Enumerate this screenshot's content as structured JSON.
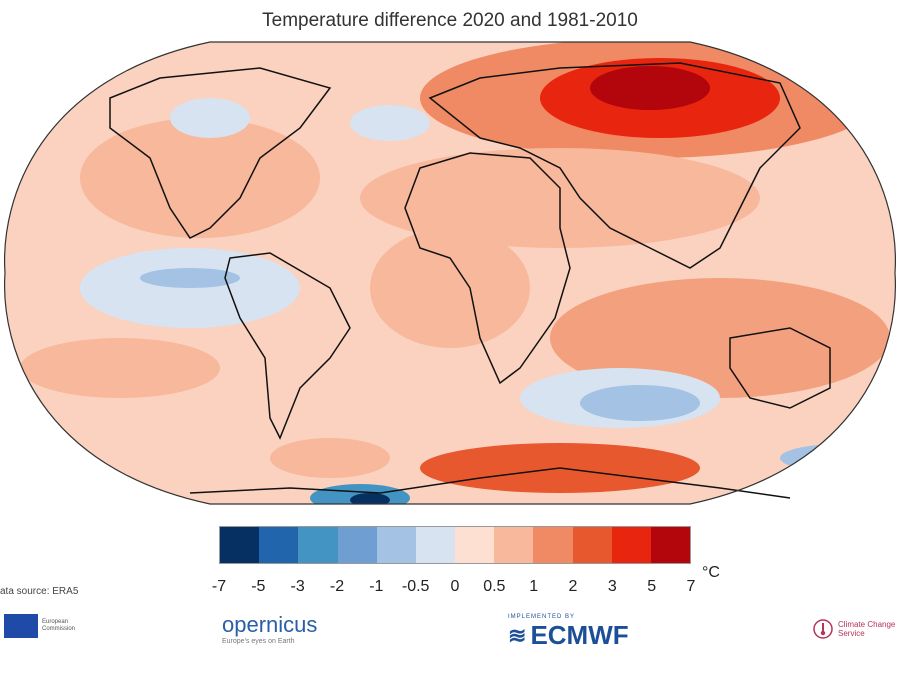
{
  "title": "Temperature difference 2020 and 1981-2010",
  "legend": {
    "colors": [
      "#053061",
      "#2166ac",
      "#4393c3",
      "#6f9fd2",
      "#a4c2e4",
      "#d7e3f1",
      "#fde0d2",
      "#f7b89b",
      "#f08a64",
      "#e8582f",
      "#e8250f",
      "#b2050c"
    ],
    "tick_labels": [
      "-7",
      "-5",
      "-3",
      "-2",
      "-1",
      "-0.5",
      "0",
      "0.5",
      "1",
      "2",
      "3",
      "5",
      "7"
    ],
    "unit": "°C"
  },
  "source": "ata source: ERA5",
  "logos": {
    "eu_caption": "European Commission",
    "copernicus": "opernicus",
    "copernicus_tagline": "Europe's eyes on Earth",
    "ecmwf_top": "IMPLEMENTED BY",
    "ecmwf": "ECMWF",
    "ccs": "Climate Change Service"
  }
}
